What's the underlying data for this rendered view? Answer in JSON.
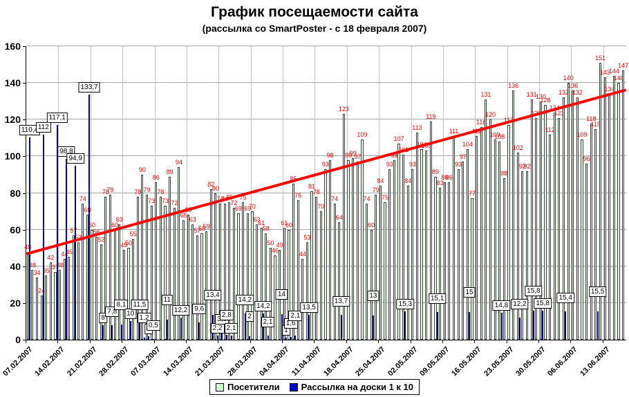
{
  "title": "График посещаемости сайта",
  "subtitle": "(рассылка со SmartPoster - с 18 февраля 2007)",
  "legend": [
    {
      "label": "Посетители",
      "color": "#ccffcc"
    },
    {
      "label": "Рассылка на доски 1 к 10",
      "color": "#0000cc"
    }
  ],
  "colors": {
    "visitor_bar_fill": "#e4ffe4",
    "visitor_bar_border": "#3a3a3a",
    "mailing_bar": "#00008b",
    "visitor_label": "#e60000",
    "trend_line": "#ff0000",
    "gridline": "#a6a6a6"
  },
  "chart_data": {
    "type": "bar",
    "title": "График посещаемости сайта",
    "subtitle": "(рассылка со SmartPoster - с 18 февраля 2007)",
    "ylabel": "",
    "xlabel": "",
    "ylim": [
      0,
      160
    ],
    "yticks": [
      0,
      20,
      40,
      60,
      80,
      100,
      120,
      140,
      160
    ],
    "grid": true,
    "legend_position": "bottom",
    "x_tick_labels": [
      "07.02.2007",
      "14.02.2007",
      "21.02.2007",
      "28.02.2007",
      "07.03.2007",
      "14.03.2007",
      "21.03.2007",
      "28.03.2007",
      "04.04.2007",
      "11.04.2007",
      "18.04.2007",
      "25.04.2007",
      "02.05.2007",
      "09.05.2007",
      "16.05.2007",
      "23.05.2007",
      "30.05.2007",
      "06.06.2007",
      "13.06.2007"
    ],
    "x_tick_every_days": 7,
    "series": [
      {
        "name": "Посетители",
        "type": "bar",
        "values": [
          48,
          38,
          34,
          24,
          35,
          42,
          37,
          38,
          44,
          45,
          57,
          53,
          74,
          68,
          60,
          56,
          52,
          78,
          79,
          60,
          63,
          49,
          50,
          55,
          78,
          90,
          79,
          73,
          86,
          78,
          73,
          89,
          72,
          94,
          65,
          68,
          63,
          57,
          58,
          59,
          82,
          80,
          74,
          74,
          75,
          72,
          69,
          75,
          69,
          70,
          63,
          61,
          58,
          50,
          46,
          49,
          61,
          60,
          85,
          76,
          44,
          53,
          81,
          78,
          70,
          93,
          98,
          74,
          64,
          123,
          98,
          99,
          97,
          109,
          74,
          60,
          79,
          84,
          75,
          93,
          98,
          107,
          101,
          84,
          93,
          113,
          104,
          103,
          119,
          89,
          83,
          86,
          86,
          111,
          93,
          97,
          104,
          77,
          111,
          116,
          131,
          120,
          109,
          108,
          88,
          117,
          136,
          102,
          92,
          92,
          131,
          121,
          130,
          128,
          112,
          124,
          121,
          132,
          140,
          136,
          132,
          109,
          96,
          118,
          115,
          151,
          143,
          134,
          144,
          140,
          147
        ]
      },
      {
        "name": "Рассылка на доски 1 к 10",
        "type": "bar",
        "points": [
          {
            "day": 1,
            "value": 110.4,
            "label": "110,4"
          },
          {
            "day": 4,
            "value": 112,
            "label": "112"
          },
          {
            "day": 7,
            "value": 117.1,
            "label": "117,1"
          },
          {
            "day": 9,
            "value": 98.8,
            "label": "98,8"
          },
          {
            "day": 11,
            "value": 94.9,
            "label": "94,9"
          },
          {
            "day": 14,
            "value": 133.7,
            "label": "133,7"
          },
          {
            "day": 17,
            "value": 8,
            "label": "8"
          },
          {
            "day": 19,
            "value": 7.8,
            "label": "7,8"
          },
          {
            "day": 21,
            "value": 8.1,
            "label": "8,1"
          },
          {
            "day": 23,
            "value": 10,
            "label": "10"
          },
          {
            "day": 25,
            "value": 11.5,
            "label": "11,5"
          },
          {
            "day": 26,
            "value": 1.2,
            "label": "1,2"
          },
          {
            "day": 27,
            "value": 2,
            "label": "2"
          },
          {
            "day": 28,
            "value": 0.5,
            "label": "0,5"
          },
          {
            "day": 31,
            "value": 11,
            "label": "11"
          },
          {
            "day": 34,
            "value": 12.2,
            "label": "12,2"
          },
          {
            "day": 38,
            "value": 9.6,
            "label": "9,6"
          },
          {
            "day": 41,
            "value": 13.4,
            "label": "13,4"
          },
          {
            "day": 42,
            "value": 2.2,
            "label": "2,2"
          },
          {
            "day": 43,
            "value": 3.6,
            "label": "3,6"
          },
          {
            "day": 44,
            "value": 2.8,
            "label": "2,8"
          },
          {
            "day": 45,
            "value": 2.1,
            "label": "2,1"
          },
          {
            "day": 48,
            "value": 14.2,
            "label": "14,2"
          },
          {
            "day": 49,
            "value": 2,
            "label": "2"
          },
          {
            "day": 52,
            "value": 14.2,
            "label": "14,2"
          },
          {
            "day": 53,
            "value": 2.1,
            "label": "2,1"
          },
          {
            "day": 56,
            "value": 14,
            "label": "14"
          },
          {
            "day": 57,
            "value": 1,
            "label": "1"
          },
          {
            "day": 58,
            "value": 1.6,
            "label": "1,6"
          },
          {
            "day": 59,
            "value": 2.1,
            "label": "2,1"
          },
          {
            "day": 62,
            "value": 13.5,
            "label": "13,5"
          },
          {
            "day": 69,
            "value": 13.7,
            "label": "13,7"
          },
          {
            "day": 76,
            "value": 13,
            "label": "13"
          },
          {
            "day": 83,
            "value": 15.3,
            "label": "15,3"
          },
          {
            "day": 90,
            "value": 15.1,
            "label": "15,1"
          },
          {
            "day": 97,
            "value": 15,
            "label": "15"
          },
          {
            "day": 104,
            "value": 14.8,
            "label": "14,8"
          },
          {
            "day": 108,
            "value": 12.2,
            "label": "12,2"
          },
          {
            "day": 111,
            "value": 15.8,
            "label": "15,8"
          },
          {
            "day": 113,
            "value": 15.8,
            "label": "15,8"
          },
          {
            "day": 118,
            "value": 15.4,
            "label": "15,4"
          },
          {
            "day": 125,
            "value": 15.5,
            "label": "15,5"
          }
        ]
      }
    ],
    "trendline": {
      "type": "linear",
      "start_value": 47,
      "end_value": 136,
      "color": "#ff0000"
    }
  }
}
